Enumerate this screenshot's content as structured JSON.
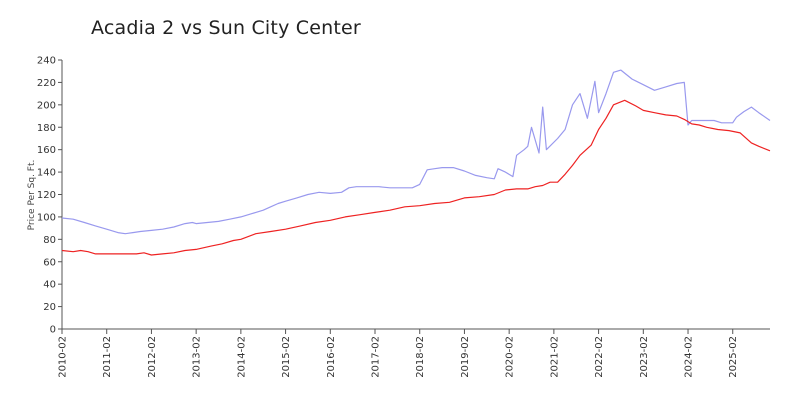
{
  "chart_data": {
    "type": "line",
    "title": "Acadia 2 vs Sun City Center",
    "ylabel": "Price Per Sq. Ft.",
    "xlabel": "",
    "ylim": [
      0,
      240
    ],
    "y_ticks": [
      0,
      20,
      40,
      60,
      80,
      100,
      120,
      140,
      160,
      180,
      200,
      220,
      240
    ],
    "x_ticks": [
      "2010-02",
      "2011-02",
      "2012-02",
      "2013-02",
      "2014-02",
      "2015-02",
      "2016-02",
      "2017-02",
      "2018-02",
      "2019-02",
      "2020-02",
      "2021-02",
      "2022-02",
      "2023-02",
      "2024-02",
      "2025-02"
    ],
    "x_range": [
      "2010-02",
      "2025-12"
    ],
    "grid": false,
    "legend": "none",
    "series": [
      {
        "color": "#9999ee",
        "points": [
          [
            "2010-02",
            99
          ],
          [
            "2010-05",
            98
          ],
          [
            "2010-08",
            95
          ],
          [
            "2010-11",
            92
          ],
          [
            "2011-02",
            89
          ],
          [
            "2011-05",
            86
          ],
          [
            "2011-07",
            85
          ],
          [
            "2011-09",
            86
          ],
          [
            "2011-11",
            87
          ],
          [
            "2012-02",
            88
          ],
          [
            "2012-05",
            89
          ],
          [
            "2012-08",
            91
          ],
          [
            "2012-11",
            94
          ],
          [
            "2013-01",
            95
          ],
          [
            "2013-02",
            94
          ],
          [
            "2013-05",
            95
          ],
          [
            "2013-08",
            96
          ],
          [
            "2013-11",
            98
          ],
          [
            "2014-02",
            100
          ],
          [
            "2014-05",
            103
          ],
          [
            "2014-08",
            106
          ],
          [
            "2014-10",
            109
          ],
          [
            "2014-12",
            112
          ],
          [
            "2015-02",
            114
          ],
          [
            "2015-05",
            117
          ],
          [
            "2015-08",
            120
          ],
          [
            "2015-11",
            122
          ],
          [
            "2016-02",
            121
          ],
          [
            "2016-05",
            122
          ],
          [
            "2016-07",
            126
          ],
          [
            "2016-09",
            127
          ],
          [
            "2016-12",
            127
          ],
          [
            "2017-03",
            127
          ],
          [
            "2017-06",
            126
          ],
          [
            "2017-09",
            126
          ],
          [
            "2017-12",
            126
          ],
          [
            "2018-02",
            129
          ],
          [
            "2018-04",
            142
          ],
          [
            "2018-06",
            143
          ],
          [
            "2018-08",
            144
          ],
          [
            "2018-11",
            144
          ],
          [
            "2019-02",
            141
          ],
          [
            "2019-05",
            137
          ],
          [
            "2019-08",
            135
          ],
          [
            "2019-10",
            134
          ],
          [
            "2019-11",
            143
          ],
          [
            "2020-01",
            140
          ],
          [
            "2020-03",
            136
          ],
          [
            "2020-04",
            155
          ],
          [
            "2020-06",
            160
          ],
          [
            "2020-07",
            163
          ],
          [
            "2020-08",
            180
          ],
          [
            "2020-10",
            157
          ],
          [
            "2020-11",
            198
          ],
          [
            "2020-12",
            160
          ],
          [
            "2021-03",
            170
          ],
          [
            "2021-05",
            178
          ],
          [
            "2021-07",
            200
          ],
          [
            "2021-09",
            210
          ],
          [
            "2021-11",
            188
          ],
          [
            "2022-01",
            221
          ],
          [
            "2022-02",
            193
          ],
          [
            "2022-04",
            210
          ],
          [
            "2022-06",
            229
          ],
          [
            "2022-08",
            231
          ],
          [
            "2022-11",
            223
          ],
          [
            "2023-02",
            218
          ],
          [
            "2023-05",
            213
          ],
          [
            "2023-08",
            216
          ],
          [
            "2023-11",
            219
          ],
          [
            "2024-01",
            220
          ],
          [
            "2024-02",
            182
          ],
          [
            "2024-03",
            186
          ],
          [
            "2024-06",
            186
          ],
          [
            "2024-09",
            186
          ],
          [
            "2024-11",
            184
          ],
          [
            "2025-02",
            184
          ],
          [
            "2025-03",
            189
          ],
          [
            "2025-05",
            194
          ],
          [
            "2025-07",
            198
          ],
          [
            "2025-09",
            193
          ],
          [
            "2025-12",
            186
          ]
        ]
      },
      {
        "color": "#ee2222",
        "points": [
          [
            "2010-02",
            70
          ],
          [
            "2010-05",
            69
          ],
          [
            "2010-07",
            70
          ],
          [
            "2010-09",
            69
          ],
          [
            "2010-11",
            67
          ],
          [
            "2011-02",
            67
          ],
          [
            "2011-06",
            67
          ],
          [
            "2011-10",
            67
          ],
          [
            "2011-12",
            68
          ],
          [
            "2012-02",
            66
          ],
          [
            "2012-05",
            67
          ],
          [
            "2012-08",
            68
          ],
          [
            "2012-11",
            70
          ],
          [
            "2013-02",
            71
          ],
          [
            "2013-06",
            74
          ],
          [
            "2013-09",
            76
          ],
          [
            "2013-12",
            79
          ],
          [
            "2014-02",
            80
          ],
          [
            "2014-06",
            85
          ],
          [
            "2014-10",
            87
          ],
          [
            "2015-02",
            89
          ],
          [
            "2015-06",
            92
          ],
          [
            "2015-10",
            95
          ],
          [
            "2016-02",
            97
          ],
          [
            "2016-06",
            100
          ],
          [
            "2016-10",
            102
          ],
          [
            "2017-02",
            104
          ],
          [
            "2017-06",
            106
          ],
          [
            "2017-10",
            109
          ],
          [
            "2018-02",
            110
          ],
          [
            "2018-06",
            112
          ],
          [
            "2018-10",
            113
          ],
          [
            "2019-02",
            117
          ],
          [
            "2019-06",
            118
          ],
          [
            "2019-10",
            120
          ],
          [
            "2020-01",
            124
          ],
          [
            "2020-04",
            125
          ],
          [
            "2020-07",
            125
          ],
          [
            "2020-09",
            127
          ],
          [
            "2020-11",
            128
          ],
          [
            "2021-01",
            131
          ],
          [
            "2021-03",
            131
          ],
          [
            "2021-05",
            138
          ],
          [
            "2021-07",
            146
          ],
          [
            "2021-09",
            155
          ],
          [
            "2021-12",
            164
          ],
          [
            "2022-02",
            178
          ],
          [
            "2022-04",
            188
          ],
          [
            "2022-06",
            200
          ],
          [
            "2022-09",
            204
          ],
          [
            "2022-12",
            199
          ],
          [
            "2023-02",
            195
          ],
          [
            "2023-05",
            193
          ],
          [
            "2023-08",
            191
          ],
          [
            "2023-11",
            190
          ],
          [
            "2024-01",
            187
          ],
          [
            "2024-03",
            183
          ],
          [
            "2024-05",
            182
          ],
          [
            "2024-07",
            180
          ],
          [
            "2024-10",
            178
          ],
          [
            "2025-01",
            177
          ],
          [
            "2025-04",
            175
          ],
          [
            "2025-07",
            166
          ],
          [
            "2025-09",
            163
          ],
          [
            "2025-12",
            159
          ]
        ]
      }
    ]
  }
}
